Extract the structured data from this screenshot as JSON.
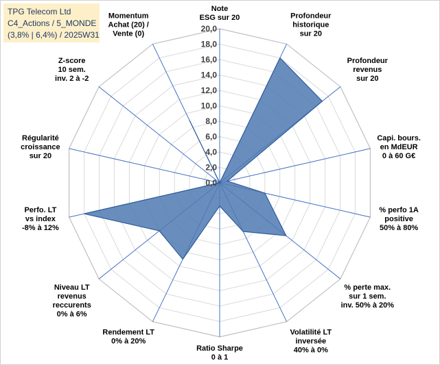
{
  "header": {
    "lines": [
      "TPG Telecom Ltd",
      "C4_Actions / 5_MONDE",
      "(3,8% | 6,4%) / 2025W31"
    ]
  },
  "colors": {
    "fill": "#4f7ab3",
    "stroke": "#2e5c9a",
    "spoke": "#4472c4",
    "ring": "#d9d9d9",
    "info_bg": "#fdf0c8"
  },
  "chart_data": {
    "type": "radar",
    "title": "",
    "rlim": [
      0,
      20
    ],
    "ticks": [
      "0,0",
      "2,0",
      "4,0",
      "6,0",
      "8,0",
      "10,0",
      "12,0",
      "14,0",
      "16,0",
      "18,0",
      "20,0"
    ],
    "tick_values": [
      0,
      2,
      4,
      6,
      8,
      10,
      12,
      14,
      16,
      18,
      20
    ],
    "grid": true,
    "categories": [
      "Note ESG sur 20",
      "Profondeur historique sur 20",
      "Profondeur revenus sur 20",
      "Capi. bours. en MdEUR 0 à 60 G€",
      "% perfo 1A positive 50% à 80%",
      "% perte max. sur 1 sem. inv. 50% à 20%",
      "Volatilité LT inversée 40% à 0%",
      "Ratio Sharpe 0 à 1",
      "Rendement LT 0% à 20%",
      "Niveau LT revenus reccurents 0% à 6%",
      "Perfo. LT vs index -8% à 12%",
      "Régularité croissance sur 20",
      "Z-score 10 sem. inv. 2 à -2",
      "Momentum Achat (20) / Vente (0)"
    ],
    "category_lines": [
      [
        "Note",
        "ESG sur 20"
      ],
      [
        "Profondeur",
        "historique",
        "sur 20"
      ],
      [
        "Profondeur",
        "revenus",
        "sur 20"
      ],
      [
        "Capi. bours.",
        "en MdEUR",
        "0 à 60 G€"
      ],
      [
        "% perfo 1A",
        "positive",
        "50% à 80%"
      ],
      [
        "% perte max.",
        "sur 1 sem.",
        "inv. 50% à 20%"
      ],
      [
        "Volatilité LT",
        "inversée",
        "40% à 0%"
      ],
      [
        "Ratio Sharpe",
        "0 à 1"
      ],
      [
        "Rendement LT",
        "0% à 20%"
      ],
      [
        "Niveau LT",
        "revenus",
        "reccurents",
        "0% à 6%"
      ],
      [
        "Perfo. LT",
        "vs index",
        "-8% à 12%"
      ],
      [
        "Régularité",
        "croissance",
        "sur 20"
      ],
      [
        "Z-score",
        "10 sem.",
        "inv. 2 à -2"
      ],
      [
        "Momentum",
        "Achat (20) /",
        "Vente (0)"
      ]
    ],
    "series": [
      {
        "values": [
          0,
          18,
          17,
          1,
          6,
          11,
          7,
          3,
          11,
          10,
          18,
          0,
          0,
          9
        ]
      }
    ]
  }
}
